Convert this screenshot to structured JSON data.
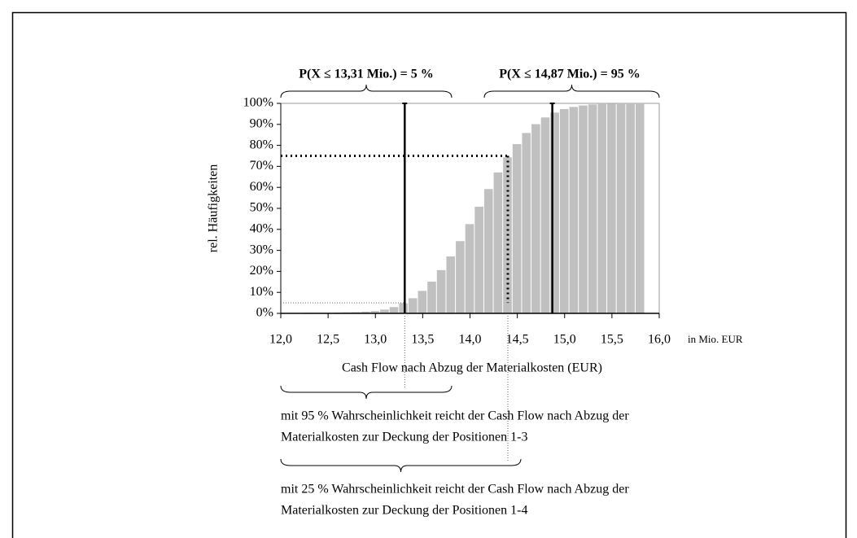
{
  "chart_data": {
    "type": "bar",
    "annotations": [
      "P(X ≤ 13,31 Mio.) = 5 %",
      "P(X ≤ 14,87 Mio.) = 95 %"
    ],
    "ylabel": "rel. Häufigkeiten",
    "xlabel": "Cash Flow nach Abzug der Materialkosten (EUR)",
    "xunit": "in Mio. EUR",
    "x": [
      12.3,
      12.4,
      12.5,
      12.6,
      12.7,
      12.8,
      12.9,
      13.0,
      13.1,
      13.2,
      13.3,
      13.4,
      13.5,
      13.6,
      13.7,
      13.8,
      13.9,
      14.0,
      14.1,
      14.2,
      14.3,
      14.4,
      14.5,
      14.6,
      14.7,
      14.8,
      14.9,
      15.0,
      15.1,
      15.2,
      15.3,
      15.4,
      15.5,
      15.6,
      15.7,
      15.8
    ],
    "values": [
      0.3,
      0.3,
      0.3,
      0.4,
      0.5,
      0.6,
      0.8,
      1.1,
      1.8,
      3.0,
      4.8,
      7.2,
      10.7,
      15.1,
      20.6,
      27.1,
      34.4,
      42.5,
      50.8,
      59.2,
      67.1,
      74.3,
      80.6,
      85.9,
      90.1,
      93.3,
      95.6,
      97.3,
      98.3,
      99.0,
      99.5,
      99.7,
      99.9,
      100,
      100,
      100
    ],
    "color": "#c0c0c0",
    "xlim": [
      12,
      16
    ],
    "xticks": [
      {
        "value": 12,
        "label": "12,0"
      },
      {
        "value": 12.5,
        "label": "12,5"
      },
      {
        "value": 13,
        "label": "13,0"
      },
      {
        "value": 13.5,
        "label": "13,5"
      },
      {
        "value": 14,
        "label": "14,0"
      },
      {
        "value": 14.5,
        "label": "14,5"
      },
      {
        "value": 15,
        "label": "15,0"
      },
      {
        "value": 15.5,
        "label": "15,5"
      },
      {
        "value": 16,
        "label": "16,0"
      }
    ],
    "ylim": [
      0,
      100
    ],
    "yticks": [
      {
        "value": 0,
        "label": "0%"
      },
      {
        "value": 10,
        "label": "10%"
      },
      {
        "value": 20,
        "label": "20%"
      },
      {
        "value": 30,
        "label": "30%"
      },
      {
        "value": 40,
        "label": "40%"
      },
      {
        "value": 50,
        "label": "50%"
      },
      {
        "value": 60,
        "label": "60%"
      },
      {
        "value": 70,
        "label": "70%"
      },
      {
        "value": 80,
        "label": "80%"
      },
      {
        "value": 90,
        "label": "90%"
      },
      {
        "value": 100,
        "label": "100%"
      }
    ],
    "reference_lines": [
      {
        "x": 13.31,
        "p": 5
      },
      {
        "x": 14.87,
        "p": 95
      }
    ],
    "dotted_point": {
      "x": 14.4,
      "p": 75
    },
    "notes": [
      [
        "mit 95 % Wahrscheinlichkeit reicht der Cash Flow nach Abzug der",
        "Materialkosten zur Deckung der Positionen 1-3"
      ],
      [
        "mit 25 % Wahrscheinlichkeit reicht der Cash Flow nach Abzug der",
        "Materialkosten zur Deckung der Positionen 1-4"
      ]
    ]
  }
}
